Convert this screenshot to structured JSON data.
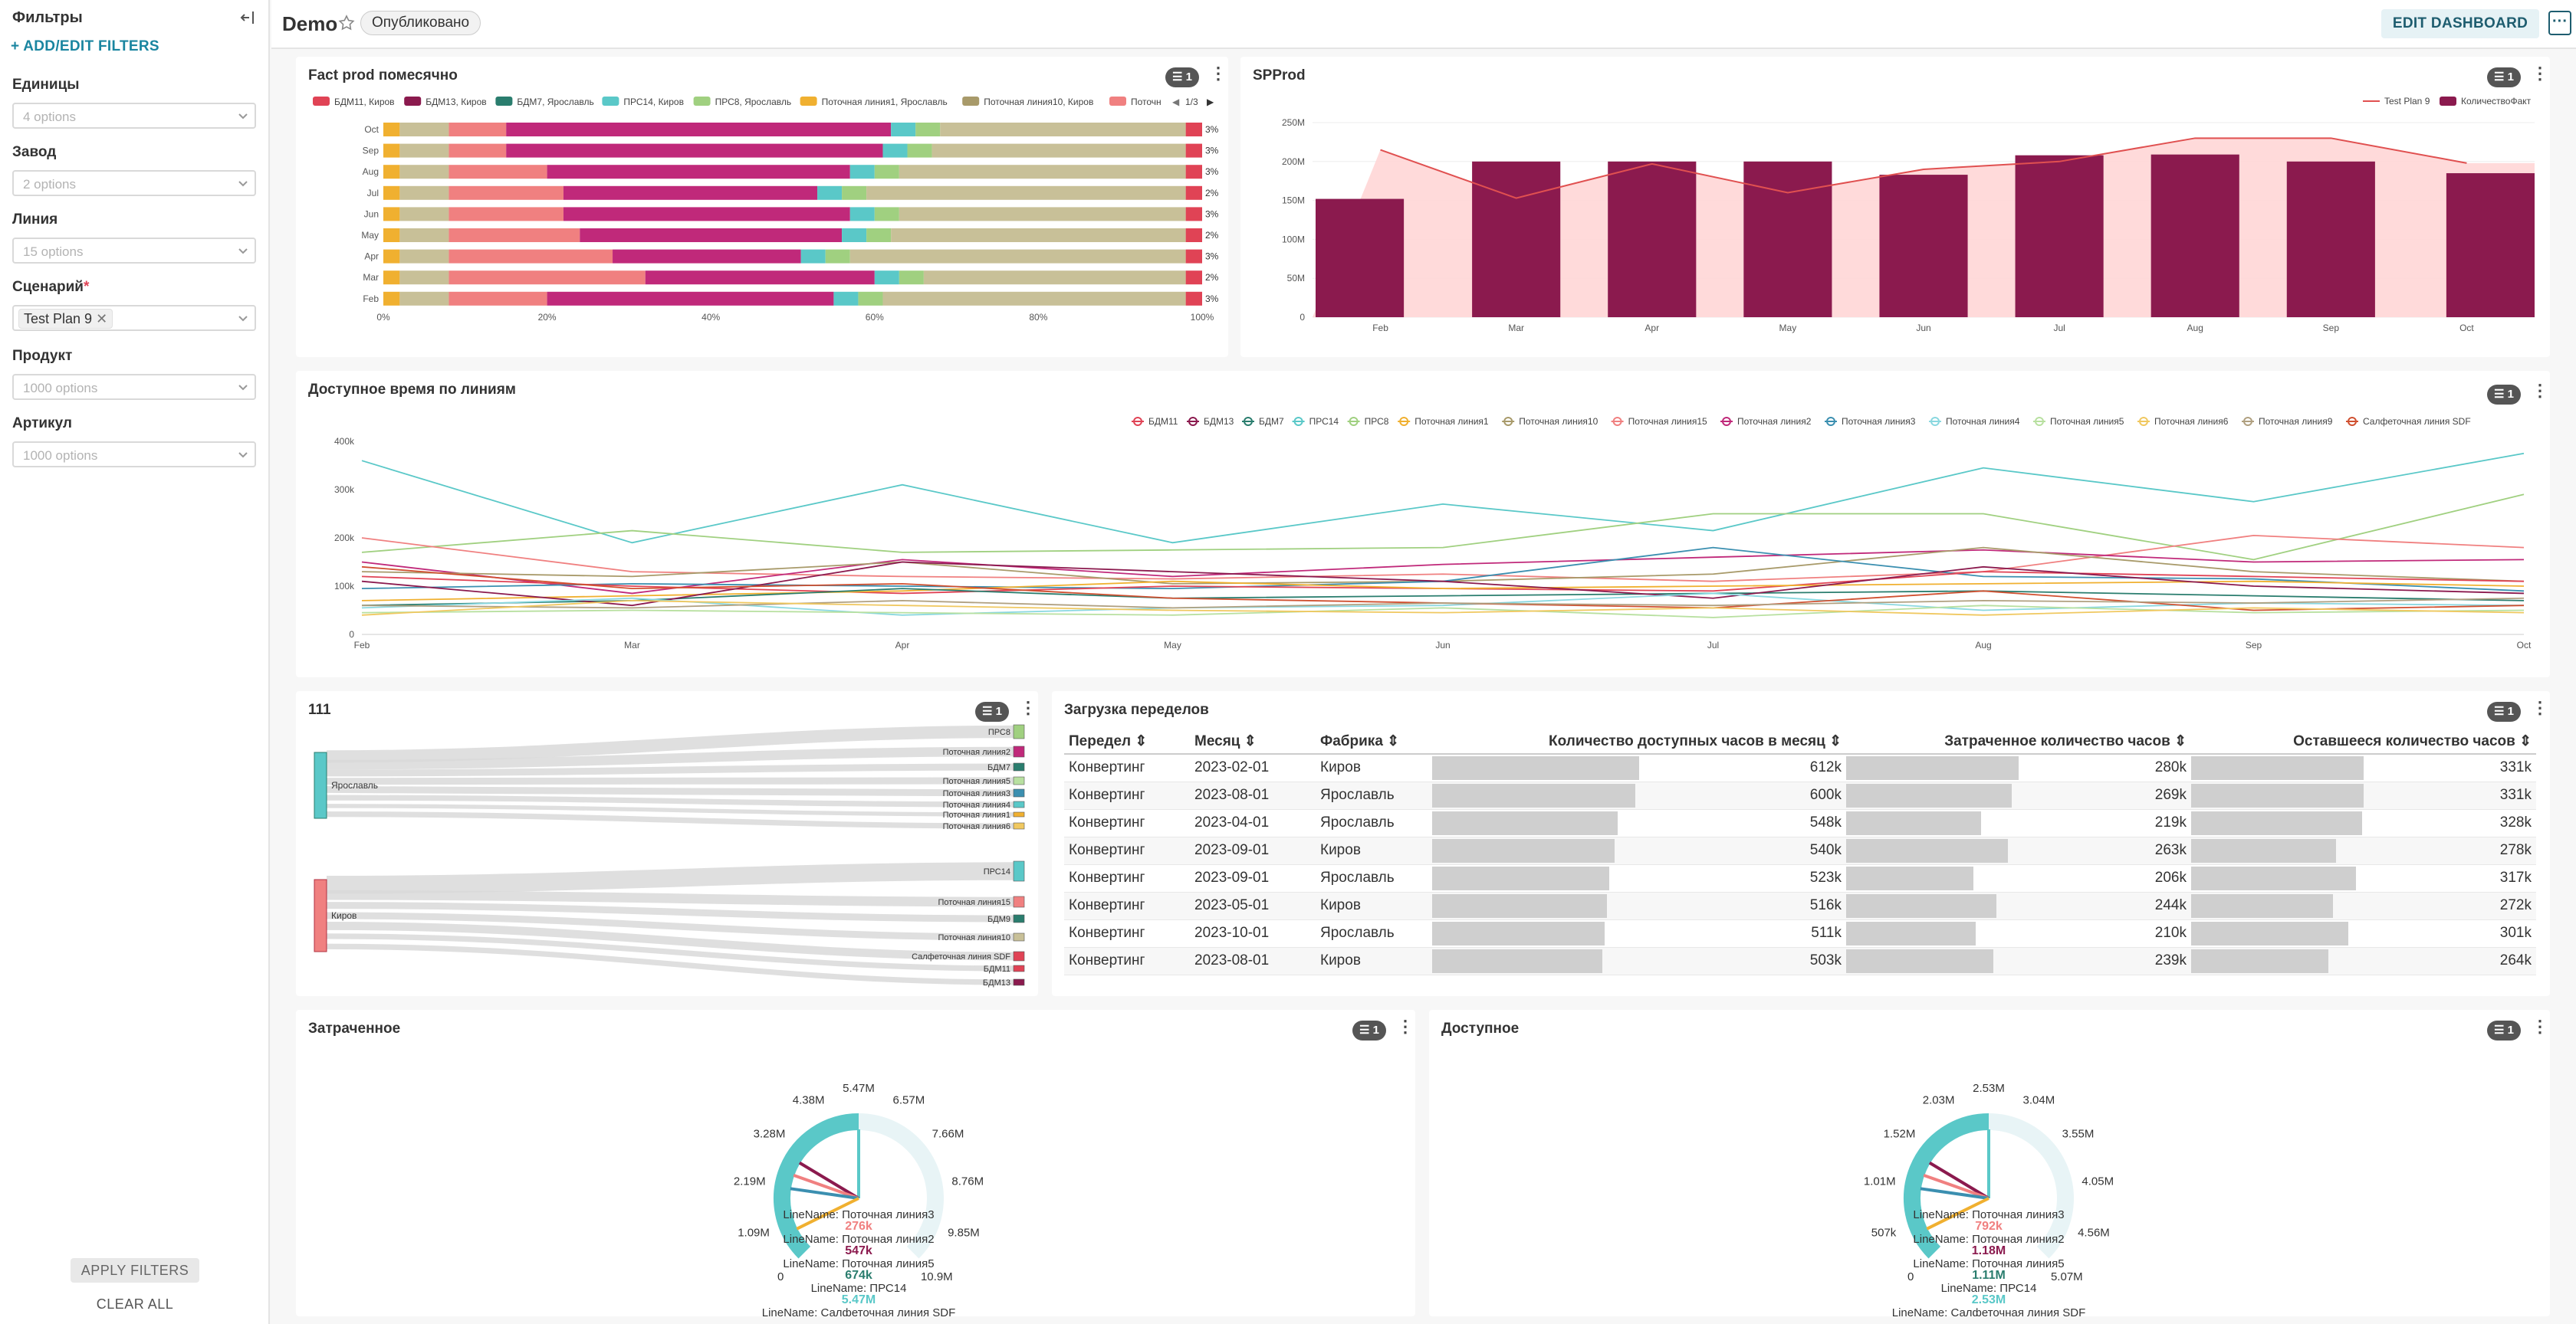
{
  "sidebar": {
    "title": "Фильтры",
    "add_filters": "+ ADD/EDIT FILTERS",
    "filters": [
      {
        "label": "Единицы",
        "placeholder": "4 options"
      },
      {
        "label": "Завод",
        "placeholder": "2 options"
      },
      {
        "label": "Линия",
        "placeholder": "15 options"
      },
      {
        "label": "Сценарий",
        "required": "*",
        "value": "Test Plan 9"
      },
      {
        "label": "Продукт",
        "placeholder": "1000 options"
      },
      {
        "label": "Артикул",
        "placeholder": "1000 options"
      }
    ],
    "apply": "APPLY FILTERS",
    "clear": "CLEAR ALL"
  },
  "header": {
    "title": "Demo",
    "status": "Опубликовано",
    "edit": "EDIT DASHBOARD",
    "more": "···"
  },
  "filter_badge": "1",
  "colors": {
    "teal": "#5ac8c8",
    "maroon": "#8b1a4e",
    "salmon": "#f08080",
    "tan": "#c8c098",
    "magenta": "#c0297a",
    "pink": "#ffd6d6",
    "red": "#e04355"
  },
  "panels": {
    "fact": {
      "title": "Fact prod помесячно",
      "pager": "1/3"
    },
    "spprod": {
      "title": "SPProd"
    },
    "avail": {
      "title": "Доступное время по линиям"
    },
    "sankey": {
      "title": "111"
    },
    "load": {
      "title": "Загрузка переделов"
    },
    "spent": {
      "title": "Затраченное"
    },
    "available": {
      "title": "Доступное"
    }
  },
  "chart_data": [
    {
      "id": "fact",
      "type": "bar",
      "orientation": "horizontal-stacked-100",
      "legend": [
        "БДМ11, Киров",
        "БДМ13, Киров",
        "БДМ7, Ярославль",
        "ПРС14, Киров",
        "ПРС8, Ярославль",
        "Поточная линия1, Ярославль",
        "Поточная линия10, Киров",
        "Поточн"
      ],
      "categories": [
        "Oct",
        "Sep",
        "Aug",
        "Jul",
        "Jun",
        "May",
        "Apr",
        "Mar",
        "Feb"
      ],
      "xticks": [
        "0%",
        "20%",
        "40%",
        "60%",
        "80%",
        "100%"
      ],
      "right_labels": [
        "3%",
        "3%",
        "3%",
        "2%",
        "3%",
        "2%",
        "3%",
        "2%",
        "3%"
      ],
      "segments": {
        "salmon": [
          0.15,
          0.15,
          0.2,
          0.22,
          0.22,
          0.24,
          0.28,
          0.32,
          0.2
        ],
        "magenta": [
          0.62,
          0.61,
          0.57,
          0.53,
          0.57,
          0.56,
          0.51,
          0.6,
          0.55
        ],
        "tan": [
          0.98,
          0.98,
          0.98,
          0.98,
          0.98,
          0.98,
          0.98,
          0.98,
          0.98
        ]
      }
    },
    {
      "id": "spprod",
      "type": "bar",
      "legend": [
        "Test Plan 9",
        "КоличествоФакт"
      ],
      "categories": [
        "Feb",
        "Mar",
        "Apr",
        "May",
        "Jun",
        "Jul",
        "Aug",
        "Sep",
        "Oct"
      ],
      "yticks": [
        "0",
        "50M",
        "100M",
        "150M",
        "200M",
        "250M"
      ],
      "ylim": [
        0,
        250
      ],
      "bars": [
        152,
        200,
        200,
        200,
        183,
        208,
        209,
        200,
        185
      ],
      "line": [
        215,
        153,
        197,
        160,
        190,
        200,
        230,
        230,
        198
      ]
    },
    {
      "id": "avail",
      "type": "line",
      "legend": [
        "БДМ11",
        "БДМ13",
        "БДМ7",
        "ПРС14",
        "ПРС8",
        "Поточная линия1",
        "Поточная линия10",
        "Поточная линия15",
        "Поточная линия2",
        "Поточная линия3",
        "Поточная линия4",
        "Поточная линия5",
        "Поточная линия6",
        "Поточная линия9",
        "Салфеточная линия SDF"
      ],
      "legend_colors": [
        "#e04355",
        "#8b1a4e",
        "#2a7d6e",
        "#5ac8c8",
        "#a0d080",
        "#f0b030",
        "#a89a6a",
        "#f08080",
        "#c0297a",
        "#3b8fb0",
        "#8ad8e0",
        "#b8e0a0",
        "#f0c860",
        "#b0a080",
        "#d05030"
      ],
      "categories": [
        "Feb",
        "Mar",
        "Apr",
        "May",
        "Jun",
        "Jul",
        "Aug",
        "Sep",
        "Oct"
      ],
      "yticks": [
        "0",
        "100k",
        "200k",
        "300k",
        "400k"
      ],
      "ylim": [
        0,
        400
      ]
    },
    {
      "id": "sankey",
      "type": "diagram",
      "sources": [
        "Ярославль",
        "Киров"
      ],
      "targets": [
        "ПРС8",
        "Поточная линия2",
        "БДМ7",
        "Поточная линия5",
        "Поточная линия3",
        "Поточная линия4",
        "Поточная линия1",
        "Поточная линия6",
        "ПРС14",
        "Поточная линия15",
        "БДМ9",
        "Поточная линия10",
        "Салфеточная линия SDF",
        "БДМ11",
        "БДМ13"
      ]
    },
    {
      "id": "spent",
      "type": "gauge",
      "ticks": [
        "0",
        "1.09M",
        "2.19M",
        "3.28M",
        "4.38M",
        "5.47M",
        "6.57M",
        "7.66M",
        "8.76M",
        "9.85M",
        "10.9M"
      ],
      "readouts": [
        {
          "label": "LineName: Поточная линия3",
          "value": "276k"
        },
        {
          "label": "LineName: Поточная линия2",
          "value": "547k"
        },
        {
          "label": "LineName: Поточная линия5",
          "value": "674k"
        },
        {
          "label": "LineName: ПРС14",
          "value": "5.47M"
        },
        {
          "label": "LineName: Салфеточная линия SDF",
          "value": ""
        }
      ]
    },
    {
      "id": "available",
      "type": "gauge",
      "ticks": [
        "0",
        "507k",
        "1.01M",
        "1.52M",
        "2.03M",
        "2.53M",
        "3.04M",
        "3.55M",
        "4.05M",
        "4.56M",
        "5.07M"
      ],
      "readouts": [
        {
          "label": "LineName: Поточная линия3",
          "value": "792k"
        },
        {
          "label": "LineName: Поточная линия2",
          "value": "1.18M"
        },
        {
          "label": "LineName: Поточная линия5",
          "value": "1.11M"
        },
        {
          "label": "LineName: ПРС14",
          "value": "2.53M"
        },
        {
          "label": "LineName: Салфеточная линия SDF",
          "value": ""
        }
      ]
    }
  ],
  "table": {
    "columns": [
      "Передел",
      "Месяц",
      "Фабрика",
      "Количество доступных часов в месяц",
      "Затраченное количество часов",
      "Оставшееся количество часов"
    ],
    "rows": [
      [
        "Конвертинг",
        "2023-02-01",
        "Киров",
        "612k",
        "280k",
        "331k"
      ],
      [
        "Конвертинг",
        "2023-08-01",
        "Ярославль",
        "600k",
        "269k",
        "331k"
      ],
      [
        "Конвертинг",
        "2023-04-01",
        "Ярославль",
        "548k",
        "219k",
        "328k"
      ],
      [
        "Конвертинг",
        "2023-09-01",
        "Киров",
        "540k",
        "263k",
        "278k"
      ],
      [
        "Конвертинг",
        "2023-09-01",
        "Ярославль",
        "523k",
        "206k",
        "317k"
      ],
      [
        "Конвертинг",
        "2023-05-01",
        "Киров",
        "516k",
        "244k",
        "272k"
      ],
      [
        "Конвертинг",
        "2023-10-01",
        "Ярославль",
        "511k",
        "210k",
        "301k"
      ],
      [
        "Конвертинг",
        "2023-08-01",
        "Киров",
        "503k",
        "239k",
        "264k"
      ]
    ]
  }
}
